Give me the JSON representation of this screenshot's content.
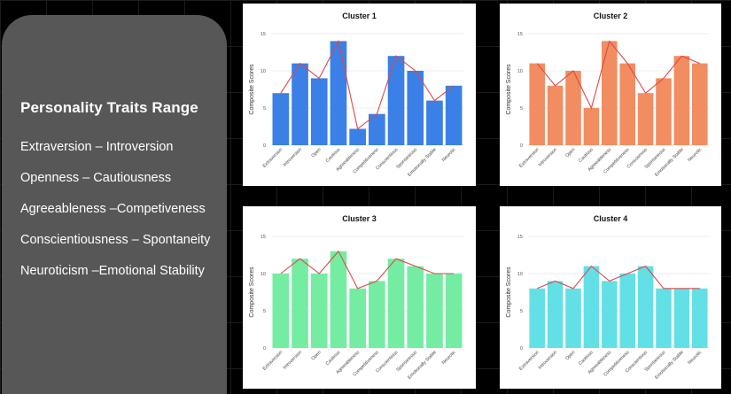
{
  "panel": {
    "title": "Personality Traits Range",
    "traits": [
      "Extraversion – Introversion",
      "Openness – Cautiousness",
      "Agreeableness –Competiveness",
      "Conscientiousness – Spontaneity",
      "Neuroticism –Emotional Stability"
    ]
  },
  "chart_data": [
    {
      "type": "bar",
      "title": "Cluster 1",
      "ylabel": "Composite Scores",
      "xlabel": "",
      "ylim": [
        0,
        15
      ],
      "yticks": [
        0,
        5,
        10,
        15
      ],
      "grid": true,
      "overlay": "line",
      "bar_color": "#3a80e6",
      "line_color": "#e04848",
      "categories": [
        "Extraversion",
        "Introversion",
        "Open",
        "Cautious",
        "Agreeableness",
        "Competitiveness",
        "Conscientious",
        "Spontaneous",
        "Emotionally Stable",
        "Neurotic"
      ],
      "values": [
        7,
        11,
        9,
        14,
        2.2,
        4.2,
        12,
        10,
        6,
        8
      ]
    },
    {
      "type": "bar",
      "title": "Cluster 2",
      "ylabel": "Composite Scores",
      "xlabel": "",
      "ylim": [
        0,
        15
      ],
      "yticks": [
        0,
        5,
        10,
        15
      ],
      "grid": true,
      "overlay": "line",
      "bar_color": "#f28c61",
      "line_color": "#e04848",
      "categories": [
        "Extraversion",
        "Introversion",
        "Open",
        "Cautious",
        "Agreeableness",
        "Competitiveness",
        "Conscienous",
        "Spontaneous",
        "Emotionally Stable",
        "Neurotic"
      ],
      "values": [
        11,
        8,
        10,
        5,
        14,
        11,
        7,
        9,
        12,
        11
      ]
    },
    {
      "type": "bar",
      "title": "Cluster 3",
      "ylabel": "Composite Scores",
      "xlabel": "",
      "ylim": [
        0,
        15
      ],
      "yticks": [
        0,
        5,
        10,
        15
      ],
      "grid": true,
      "overlay": "line",
      "bar_color": "#74eda3",
      "line_color": "#e04848",
      "categories": [
        "Extraversion",
        "Introversion",
        "Open",
        "Cautious",
        "Agreeableness",
        "Competitiveness",
        "Conscientious",
        "Spontaneous",
        "Emotionally Stable",
        "Neurotic"
      ],
      "values": [
        10,
        12,
        10,
        13,
        8,
        9,
        12,
        11,
        10,
        10
      ]
    },
    {
      "type": "bar",
      "title": "Cluster 4",
      "ylabel": "Composite Scores",
      "xlabel": "",
      "ylim": [
        0,
        15
      ],
      "yticks": [
        0,
        5,
        10,
        15
      ],
      "grid": true,
      "overlay": "line",
      "bar_color": "#63e0e6",
      "line_color": "#e04848",
      "categories": [
        "Extraversion",
        "Introversion",
        "Open",
        "Cautious",
        "Agreeableness",
        "Competitiveness",
        "Conscientious",
        "Spontaneous",
        "Emotionally Stable",
        "Neurotic"
      ],
      "values": [
        8,
        9,
        8,
        11,
        9,
        10,
        11,
        8,
        8,
        8
      ]
    }
  ]
}
